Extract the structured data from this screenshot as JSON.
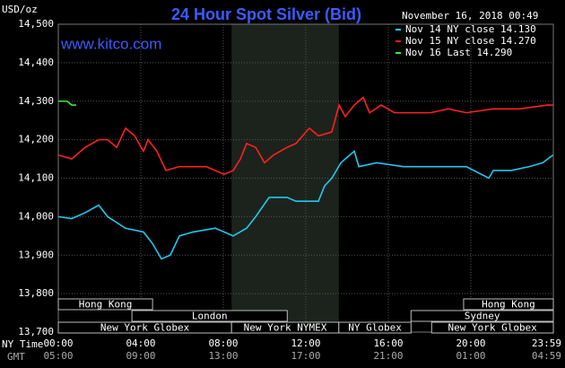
{
  "chart_data": {
    "type": "line",
    "title": "24 Hour Spot Silver (Bid)",
    "site": "www.kitco.com",
    "timestamp": "November 16, 2018 00:49",
    "y_label": "USD/oz",
    "x_label": "NY Time",
    "x2_label": "GMT",
    "xlim": [
      0,
      24
    ],
    "ylim": [
      13.7,
      14.5
    ],
    "grid": true,
    "xticks": [
      {
        "value": 0,
        "label": "00:00"
      },
      {
        "value": 4,
        "label": "04:00"
      },
      {
        "value": 8,
        "label": "08:00"
      },
      {
        "value": 12,
        "label": "12:00"
      },
      {
        "value": 16,
        "label": "16:00"
      },
      {
        "value": 20,
        "label": "20:00"
      },
      {
        "value": 23.98,
        "label": "23:59"
      }
    ],
    "x2ticks": [
      {
        "value": 0,
        "label": "05:00"
      },
      {
        "value": 4,
        "label": "09:00"
      },
      {
        "value": 8,
        "label": "13:00"
      },
      {
        "value": 12,
        "label": "17:00"
      },
      {
        "value": 16,
        "label": "21:00"
      },
      {
        "value": 20,
        "label": "01:00"
      },
      {
        "value": 23.98,
        "label": "04:59"
      }
    ],
    "yticks": [
      {
        "value": 14.5,
        "label": "14,500"
      },
      {
        "value": 14.4,
        "label": "14,400"
      },
      {
        "value": 14.3,
        "label": "14,300"
      },
      {
        "value": 14.2,
        "label": "14,200"
      },
      {
        "value": 14.1,
        "label": "14,100"
      },
      {
        "value": 14.0,
        "label": "14,000"
      },
      {
        "value": 13.9,
        "label": "13,900"
      },
      {
        "value": 13.8,
        "label": "13,800"
      },
      {
        "value": 13.7,
        "label": "13,700"
      }
    ],
    "highlight": [
      8.4,
      13.6
    ],
    "series": [
      {
        "name": "Nov 14 NY close 14.130",
        "color": "#22c8f0",
        "x": [
          0,
          0.65,
          1.3,
          1.96,
          2.39,
          3.26,
          4.13,
          4.57,
          5.0,
          5.43,
          5.87,
          6.52,
          7.61,
          8.48,
          9.13,
          9.57,
          10.22,
          11.09,
          11.52,
          12.61,
          12.91,
          13.26,
          13.7,
          14.13,
          14.35,
          14.57,
          15.43,
          16.74,
          18.04,
          19.78,
          20.87,
          21.09,
          21.96,
          22.83,
          23.48,
          23.98
        ],
        "values": [
          14.0,
          13.995,
          14.01,
          14.03,
          14.0,
          13.97,
          13.96,
          13.93,
          13.89,
          13.9,
          13.95,
          13.96,
          13.97,
          13.95,
          13.97,
          14.0,
          14.05,
          14.05,
          14.04,
          14.04,
          14.08,
          14.1,
          14.14,
          14.16,
          14.17,
          14.13,
          14.14,
          14.13,
          14.13,
          14.13,
          14.1,
          14.12,
          14.12,
          14.13,
          14.14,
          14.16
        ]
      },
      {
        "name": "Nov 15 NY close 14.270",
        "color": "#ff2020",
        "x": [
          0,
          0.65,
          1.3,
          1.96,
          2.39,
          2.83,
          3.26,
          3.7,
          4.13,
          4.35,
          4.78,
          5.22,
          5.87,
          7.17,
          8.04,
          8.48,
          8.83,
          9.13,
          9.57,
          10.0,
          10.43,
          11.09,
          11.52,
          12.17,
          12.61,
          13.26,
          13.61,
          13.91,
          14.35,
          14.78,
          15.09,
          15.65,
          16.3,
          18.04,
          18.91,
          19.78,
          21.09,
          22.39,
          23.7,
          23.98
        ],
        "values": [
          14.16,
          14.15,
          14.18,
          14.2,
          14.2,
          14.18,
          14.23,
          14.21,
          14.17,
          14.2,
          14.17,
          14.12,
          14.13,
          14.13,
          14.11,
          14.12,
          14.15,
          14.19,
          14.18,
          14.14,
          14.16,
          14.18,
          14.19,
          14.23,
          14.21,
          14.22,
          14.29,
          14.26,
          14.29,
          14.31,
          14.27,
          14.29,
          14.27,
          14.27,
          14.28,
          14.27,
          14.28,
          14.28,
          14.29,
          14.29
        ]
      },
      {
        "name": "Nov 16 Last 14.290",
        "color": "#33ee33",
        "x": [
          0,
          0.43,
          0.65,
          0.87
        ],
        "values": [
          14.3,
          14.3,
          14.29,
          14.29
        ]
      }
    ],
    "session_rows": [
      [
        {
          "label": "Hong Kong",
          "start": 0,
          "end": 4.57
        },
        {
          "label": "Hong Kong",
          "start": 19.65,
          "end": 24
        }
      ],
      [
        {
          "label": "London",
          "start": 3.57,
          "end": 11.1
        },
        {
          "label": "Sydney",
          "start": 17.1,
          "end": 24
        }
      ],
      [
        {
          "label": "New York Globex",
          "start": 0,
          "end": 8.4
        },
        {
          "label": "New York NYMEX",
          "start": 8.4,
          "end": 13.6
        },
        {
          "label": "NY Globex",
          "start": 13.6,
          "end": 17.1
        },
        {
          "label": "New York Globex",
          "start": 18.1,
          "end": 24
        }
      ]
    ]
  }
}
